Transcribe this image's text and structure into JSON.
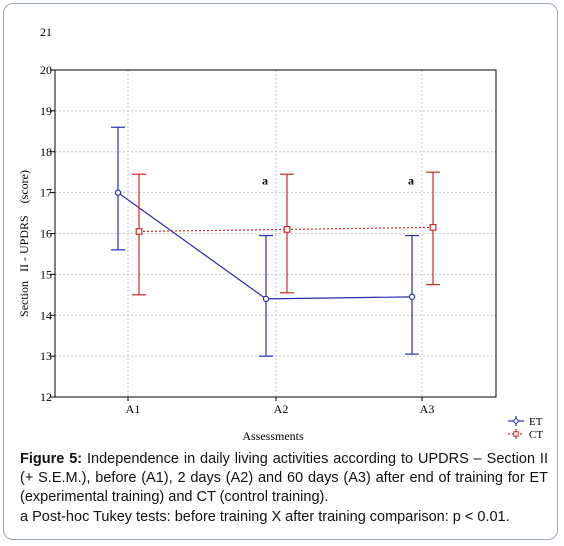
{
  "chart_data": {
    "type": "line",
    "categories": [
      "A1",
      "A2",
      "A3"
    ],
    "series": [
      {
        "name": "ET",
        "color": "#2b2bb0",
        "line_style": "solid",
        "marker": "circle",
        "values": [
          17.0,
          14.4,
          14.45
        ],
        "upper": [
          18.6,
          15.95,
          15.95
        ],
        "lower": [
          15.6,
          13.0,
          13.05
        ]
      },
      {
        "name": "CT",
        "color": "#cc2a2a",
        "line_style": "dotted",
        "marker": "square",
        "values": [
          16.05,
          16.1,
          16.15
        ],
        "upper": [
          17.45,
          17.45,
          17.5
        ],
        "lower": [
          14.5,
          14.55,
          14.75
        ]
      }
    ],
    "annotations": [
      {
        "category": "A2",
        "text": "a"
      },
      {
        "category": "A3",
        "text": "a"
      }
    ],
    "xlabel": "Assessments",
    "ylabel": "Section   II - UPDRS    (score)",
    "ylim": [
      12,
      20
    ],
    "yticks": [
      "12",
      "13",
      "14",
      "15",
      "16",
      "17",
      "18",
      "19",
      "20"
    ],
    "ytick_above": "21",
    "grid": true,
    "legend": "bottom-right"
  },
  "caption": {
    "figure_label": "Figure 5:",
    "figure_text": " Independence in daily living activities according to UPDRS – Section II (+ S.E.M.), before (A1), 2 days (A2) and 60 days (A3) after end of training for ET (experimental training) and CT (control training).",
    "note": "a Post-hoc Tukey tests: before training X after training comparison: p < 0.01."
  }
}
